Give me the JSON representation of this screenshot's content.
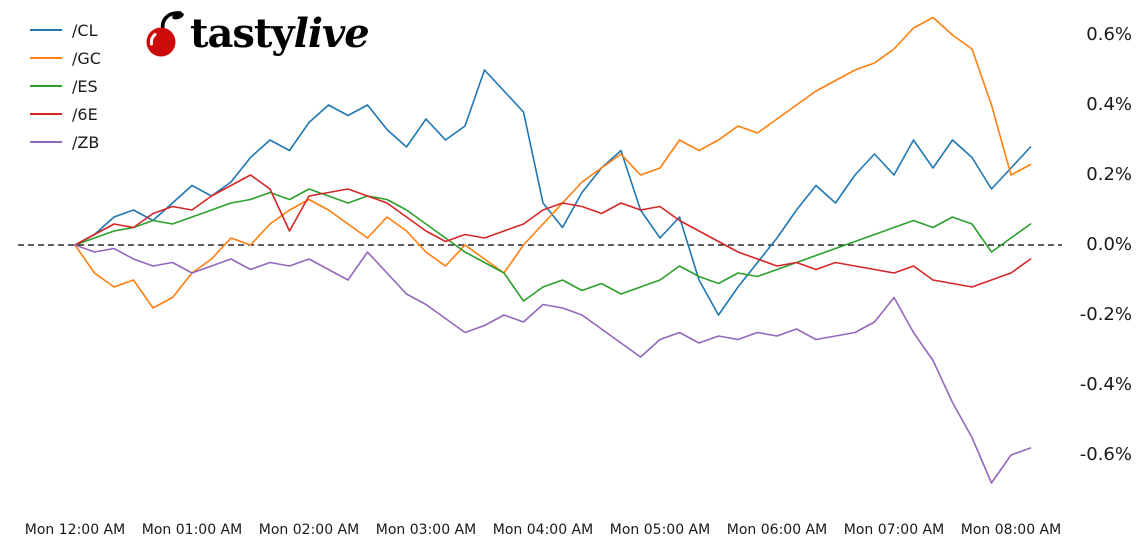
{
  "brand": {
    "text_roman": "tasty",
    "text_italic": "live",
    "cherry_color": "#cc0a0a"
  },
  "chart_data": {
    "type": "line",
    "title": "",
    "xlabel": "",
    "ylabel": "",
    "grid": false,
    "zero_line": true,
    "legend_position": "top-left",
    "x_step_minutes": 10,
    "xlim": [
      0,
      8.3
    ],
    "ylim": [
      -0.75,
      0.72
    ],
    "x_ticks": {
      "values": [
        0,
        1,
        2,
        3,
        4,
        5,
        6,
        7,
        8
      ],
      "labels": [
        "Mon 12:00 AM",
        "Mon 01:00 AM",
        "Mon 02:00 AM",
        "Mon 03:00 AM",
        "Mon 04:00 AM",
        "Mon 05:00 AM",
        "Mon 06:00 AM",
        "Mon 07:00 AM",
        "Mon 08:00 AM"
      ]
    },
    "y_ticks": {
      "values": [
        0.6,
        0.4,
        0.2,
        0.0,
        -0.2,
        -0.4,
        -0.6
      ],
      "labels": [
        "0.6%",
        "0.4%",
        "0.2%",
        "0.0%",
        "-0.2%",
        "-0.4%",
        "-0.6%"
      ]
    },
    "series": [
      {
        "name": "/CL",
        "color": "#1f77b4",
        "y_unit": "percent",
        "y": [
          0.0,
          0.03,
          0.08,
          0.1,
          0.07,
          0.12,
          0.17,
          0.14,
          0.18,
          0.25,
          0.3,
          0.27,
          0.35,
          0.4,
          0.37,
          0.4,
          0.33,
          0.28,
          0.36,
          0.3,
          0.34,
          0.5,
          0.44,
          0.38,
          0.12,
          0.05,
          0.15,
          0.22,
          0.27,
          0.1,
          0.02,
          0.08,
          -0.1,
          -0.2,
          -0.12,
          -0.05,
          0.02,
          0.1,
          0.17,
          0.12,
          0.2,
          0.26,
          0.2,
          0.3,
          0.22,
          0.3,
          0.25,
          0.16,
          0.22,
          0.28
        ]
      },
      {
        "name": "/GC",
        "color": "#ff7f0e",
        "y_unit": "percent",
        "y": [
          0.0,
          -0.08,
          -0.12,
          -0.1,
          -0.18,
          -0.15,
          -0.08,
          -0.04,
          0.02,
          0.0,
          0.06,
          0.1,
          0.13,
          0.1,
          0.06,
          0.02,
          0.08,
          0.04,
          -0.02,
          -0.06,
          0.0,
          -0.04,
          -0.08,
          0.0,
          0.06,
          0.12,
          0.18,
          0.22,
          0.26,
          0.2,
          0.22,
          0.3,
          0.27,
          0.3,
          0.34,
          0.32,
          0.36,
          0.4,
          0.44,
          0.47,
          0.5,
          0.52,
          0.56,
          0.62,
          0.65,
          0.6,
          0.56,
          0.4,
          0.2,
          0.23
        ]
      },
      {
        "name": "/ES",
        "color": "#2ca02c",
        "y_unit": "percent",
        "y": [
          0.0,
          0.02,
          0.04,
          0.05,
          0.07,
          0.06,
          0.08,
          0.1,
          0.12,
          0.13,
          0.15,
          0.13,
          0.16,
          0.14,
          0.12,
          0.14,
          0.13,
          0.1,
          0.06,
          0.02,
          -0.02,
          -0.05,
          -0.08,
          -0.16,
          -0.12,
          -0.1,
          -0.13,
          -0.11,
          -0.14,
          -0.12,
          -0.1,
          -0.06,
          -0.09,
          -0.11,
          -0.08,
          -0.09,
          -0.07,
          -0.05,
          -0.03,
          -0.01,
          0.01,
          0.03,
          0.05,
          0.07,
          0.05,
          0.08,
          0.06,
          -0.02,
          0.02,
          0.06
        ]
      },
      {
        "name": "/6E",
        "color": "#d62728",
        "y_unit": "percent",
        "y": [
          0.0,
          0.03,
          0.06,
          0.05,
          0.09,
          0.11,
          0.1,
          0.14,
          0.17,
          0.2,
          0.16,
          0.04,
          0.14,
          0.15,
          0.16,
          0.14,
          0.12,
          0.08,
          0.04,
          0.01,
          0.03,
          0.02,
          0.04,
          0.06,
          0.1,
          0.12,
          0.11,
          0.09,
          0.12,
          0.1,
          0.11,
          0.07,
          0.04,
          0.01,
          -0.02,
          -0.04,
          -0.06,
          -0.05,
          -0.07,
          -0.05,
          -0.06,
          -0.07,
          -0.08,
          -0.06,
          -0.1,
          -0.11,
          -0.12,
          -0.1,
          -0.08,
          -0.04
        ]
      },
      {
        "name": "/ZB",
        "color": "#9467bd",
        "y_unit": "percent",
        "y": [
          0.0,
          -0.02,
          -0.01,
          -0.04,
          -0.06,
          -0.05,
          -0.08,
          -0.06,
          -0.04,
          -0.07,
          -0.05,
          -0.06,
          -0.04,
          -0.07,
          -0.1,
          -0.02,
          -0.08,
          -0.14,
          -0.17,
          -0.21,
          -0.25,
          -0.23,
          -0.2,
          -0.22,
          -0.17,
          -0.18,
          -0.2,
          -0.24,
          -0.28,
          -0.32,
          -0.27,
          -0.25,
          -0.28,
          -0.26,
          -0.27,
          -0.25,
          -0.26,
          -0.24,
          -0.27,
          -0.26,
          -0.25,
          -0.22,
          -0.15,
          -0.25,
          -0.33,
          -0.45,
          -0.55,
          -0.68,
          -0.6,
          -0.58
        ]
      }
    ]
  }
}
